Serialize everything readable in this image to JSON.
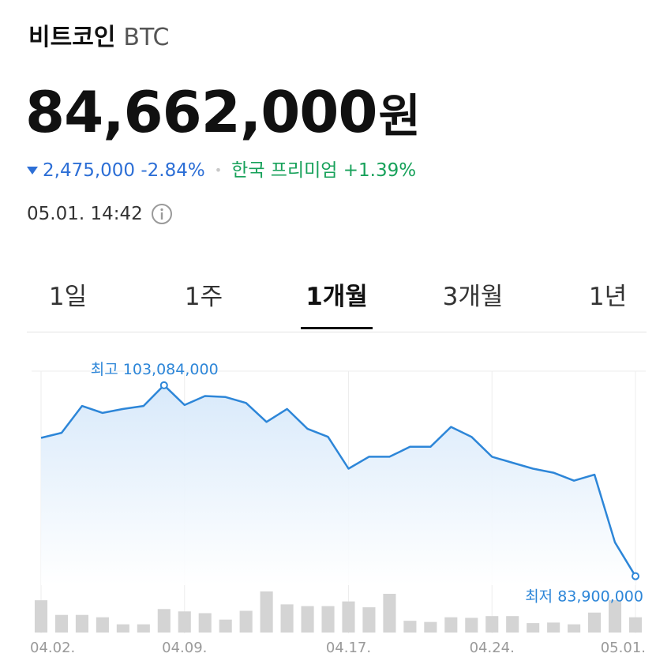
{
  "header": {
    "name": "비트코인",
    "ticker": "BTC",
    "price": "84,662,000",
    "unit": "원",
    "change": "2,475,000 -2.84%",
    "premium": "한국 프리미엄 +1.39%",
    "timestamp": "05.01. 14:42"
  },
  "tabs": [
    {
      "label": "1일",
      "active": false
    },
    {
      "label": "1주",
      "active": false
    },
    {
      "label": "1개월",
      "active": true
    },
    {
      "label": "3개월",
      "active": false
    },
    {
      "label": "1년",
      "active": false
    }
  ],
  "colors": {
    "line": "#2d86d8",
    "fill_top": "#d6e8fa",
    "volume": "#d4d4d4",
    "down": "#2d6fd6",
    "premium": "#17a15a"
  },
  "icons": {
    "info": "info-circle-icon",
    "change_direction": "caret-down-icon"
  },
  "chart_data": {
    "type": "line",
    "title": "",
    "xlabel": "",
    "ylabel": "",
    "x": [
      "04.02.",
      "04.03.",
      "04.04.",
      "04.05.",
      "04.06.",
      "04.07.",
      "04.08.",
      "04.09.",
      "04.10.",
      "04.11.",
      "04.12.",
      "04.13.",
      "04.14.",
      "04.15.",
      "04.16.",
      "04.17.",
      "04.18.",
      "04.19.",
      "04.20.",
      "04.21.",
      "04.22.",
      "04.23.",
      "04.24.",
      "04.25.",
      "04.26.",
      "04.27.",
      "04.28.",
      "04.29.",
      "04.30.",
      "05.01."
    ],
    "x_tick_labels": [
      "04.02.",
      "04.09.",
      "04.17.",
      "04.24.",
      "05.01."
    ],
    "series": [
      {
        "values": [
          97800000,
          98300000,
          101000000,
          100300000,
          100700000,
          101000000,
          103084000,
          101100000,
          102000000,
          101900000,
          101300000,
          99400000,
          100700000,
          98700000,
          97900000,
          94700000,
          95900000,
          95900000,
          96900000,
          96900000,
          98900000,
          97900000,
          95900000,
          95300000,
          94700000,
          94300000,
          93500000,
          94100000,
          87300000,
          83900000
        ]
      }
    ],
    "volume": [
      55,
      30,
      30,
      26,
      14,
      14,
      40,
      36,
      33,
      22,
      37,
      70,
      48,
      45,
      45,
      53,
      43,
      66,
      20,
      18,
      26,
      25,
      28,
      28,
      16,
      17,
      14,
      34,
      55,
      26
    ],
    "annotations": {
      "max_label": "최고 103,084,000",
      "min_label": "최저 83,900,000"
    },
    "ylim": [
      83000000,
      104500000
    ],
    "grid": true
  }
}
